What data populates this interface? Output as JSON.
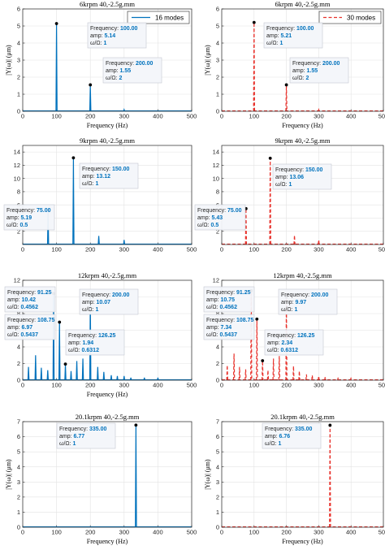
{
  "chart_data": [
    {
      "type": "line",
      "title": "6krpm 40,-2.5g.mm",
      "xlabel": "Frequency (Hz)",
      "ylabel": "|Y(ω)| (μm)",
      "xlim": [
        0,
        500
      ],
      "ylim": [
        0,
        6
      ],
      "xticks": [
        0,
        100,
        200,
        300,
        400,
        500
      ],
      "yticks": [
        0,
        1,
        2,
        3,
        4,
        5,
        6
      ],
      "grid": true,
      "legend": "top-right",
      "series": [
        {
          "name": "16 modes",
          "color": "#0072BD",
          "dash": "solid",
          "x": [
            100,
            200,
            300
          ],
          "values": [
            5.14,
            1.55,
            0.1
          ]
        }
      ],
      "datatips": [
        {
          "x": 100,
          "y": 5.14,
          "frequency": "100.00",
          "amp": "5.14",
          "ratio": "1"
        },
        {
          "x": 200,
          "y": 1.55,
          "frequency": "200.00",
          "amp": "1.55",
          "ratio": "2"
        }
      ]
    },
    {
      "type": "line",
      "title": "6krpm 40,-2.5g.mm",
      "xlabel": "Frequency (Hz)",
      "ylabel": "|Y(ω)| (μm)",
      "xlim": [
        0,
        500
      ],
      "ylim": [
        0,
        6
      ],
      "xticks": [
        0,
        100,
        200,
        300,
        400,
        500
      ],
      "yticks": [
        0,
        1,
        2,
        3,
        4,
        5,
        6
      ],
      "grid": true,
      "legend": "top-right",
      "series": [
        {
          "name": "30 modes",
          "color": "#E8312B",
          "dash": "dashed",
          "x": [
            100,
            200,
            300
          ],
          "values": [
            5.21,
            1.55,
            0.1
          ]
        }
      ],
      "datatips": [
        {
          "x": 100,
          "y": 5.21,
          "frequency": "100.00",
          "amp": "5.21",
          "ratio": "1"
        },
        {
          "x": 200,
          "y": 1.55,
          "frequency": "200.00",
          "amp": "1.55",
          "ratio": "2"
        }
      ]
    },
    {
      "type": "line",
      "title": "9krpm 40,-2.5g.mm",
      "xlabel": "",
      "ylabel": "",
      "xlim": [
        0,
        500
      ],
      "ylim": [
        0,
        15
      ],
      "xticks": [
        0,
        100,
        200,
        300,
        400,
        500
      ],
      "yticks": [
        2,
        4,
        6,
        8,
        10,
        12,
        14
      ],
      "grid": true,
      "series": [
        {
          "color": "#0072BD",
          "dash": "solid",
          "x": [
            75,
            150,
            225,
            300
          ],
          "values": [
            5.19,
            13.12,
            1.3,
            0.7
          ]
        }
      ],
      "datatips": [
        {
          "x": 75,
          "y": 5.19,
          "frequency": "75.00",
          "amp": "5.19",
          "ratio": "0.5"
        },
        {
          "x": 150,
          "y": 13.12,
          "frequency": "150.00",
          "amp": "13.12",
          "ratio": "1"
        }
      ]
    },
    {
      "type": "line",
      "title": "9krpm 40,-2.5g.mm",
      "xlabel": "",
      "ylabel": "",
      "xlim": [
        0,
        500
      ],
      "ylim": [
        0,
        15
      ],
      "xticks": [
        0,
        100,
        200,
        300,
        400,
        500
      ],
      "yticks": [
        2,
        4,
        6,
        8,
        10,
        12,
        14
      ],
      "grid": true,
      "series": [
        {
          "color": "#E8312B",
          "dash": "dashed",
          "x": [
            75,
            150,
            225,
            300
          ],
          "values": [
            5.43,
            13.06,
            1.4,
            0.7
          ]
        }
      ],
      "datatips": [
        {
          "x": 75,
          "y": 5.43,
          "frequency": "75.00",
          "amp": "5.43",
          "ratio": "0.5"
        },
        {
          "x": 150,
          "y": 13.06,
          "frequency": "150.00",
          "amp": "13.06",
          "ratio": "1"
        }
      ]
    },
    {
      "type": "line",
      "title": "12krpm 40,-2.5g.mm",
      "xlabel": "Frequency (Hz)",
      "ylabel": "",
      "xlim": [
        0,
        500
      ],
      "ylim": [
        0,
        12
      ],
      "xticks": [
        0,
        100,
        200,
        300,
        400,
        500
      ],
      "yticks": [
        0,
        2,
        4,
        6,
        8,
        10,
        12
      ],
      "grid": true,
      "series": [
        {
          "color": "#0072BD",
          "dash": "solid",
          "x": [
            17,
            38,
            55,
            74,
            91.25,
            108.75,
            126.25,
            143,
            160,
            178,
            200,
            222,
            240,
            262,
            280,
            300,
            320,
            360,
            400
          ],
          "values": [
            1.6,
            3.0,
            1.5,
            1.2,
            10.42,
            6.97,
            1.94,
            1.1,
            2.3,
            2.6,
            10.07,
            1.6,
            1.0,
            0.6,
            0.5,
            0.5,
            0.3,
            0.3,
            0.3
          ]
        }
      ],
      "datatips": [
        {
          "x": 91.25,
          "y": 10.42,
          "frequency": "91.25",
          "amp": "10.42",
          "ratio": "0.4562"
        },
        {
          "x": 200,
          "y": 10.07,
          "frequency": "200.00",
          "amp": "10.07",
          "ratio": "1"
        },
        {
          "x": 108.75,
          "y": 6.97,
          "frequency": "108.75",
          "amp": "6.97",
          "ratio": "0.5437"
        },
        {
          "x": 126.25,
          "y": 1.94,
          "frequency": "126.25",
          "amp": "1.94",
          "ratio": "0.6312"
        }
      ]
    },
    {
      "type": "line",
      "title": "12krpm 40,-2.5g.mm",
      "xlabel": "",
      "ylabel": "",
      "xlim": [
        0,
        500
      ],
      "ylim": [
        0,
        12
      ],
      "xticks": [
        0,
        100,
        200,
        300,
        400,
        500
      ],
      "yticks": [
        0,
        2,
        4,
        6,
        8,
        10,
        12
      ],
      "grid": true,
      "series": [
        {
          "color": "#E8312B",
          "dash": "dashed",
          "x": [
            17,
            38,
            55,
            74,
            91.25,
            108.75,
            126.25,
            143,
            160,
            178,
            200,
            222,
            240,
            262,
            280,
            300,
            320,
            360,
            400
          ],
          "values": [
            1.8,
            3.2,
            1.6,
            1.3,
            10.75,
            7.34,
            2.34,
            1.2,
            2.6,
            2.9,
            9.97,
            1.7,
            1.1,
            0.7,
            0.6,
            0.5,
            0.4,
            0.3,
            0.3
          ]
        }
      ],
      "datatips": [
        {
          "x": 91.25,
          "y": 10.75,
          "frequency": "91.25",
          "amp": "10.75",
          "ratio": "0.4562"
        },
        {
          "x": 200,
          "y": 9.97,
          "frequency": "200.00",
          "amp": "9.97",
          "ratio": "1"
        },
        {
          "x": 108.75,
          "y": 7.34,
          "frequency": "108.75",
          "amp": "7.34",
          "ratio": "0.5437"
        },
        {
          "x": 126.25,
          "y": 2.34,
          "frequency": "126.25",
          "amp": "2.34",
          "ratio": "0.6312"
        }
      ]
    },
    {
      "type": "line",
      "title": "20.1krpm 40,-2.5g.mm",
      "xlabel": "Frequency (Hz)",
      "ylabel": "|Y(ω)| (μm)",
      "xlim": [
        0,
        500
      ],
      "ylim": [
        0,
        7
      ],
      "xticks": [
        0,
        100,
        200,
        300,
        400,
        500
      ],
      "yticks": [
        0,
        1,
        2,
        3,
        4,
        5,
        6,
        7
      ],
      "grid": true,
      "series": [
        {
          "color": "#0072BD",
          "dash": "solid",
          "x": [
            335
          ],
          "values": [
            6.77
          ]
        }
      ],
      "datatips": [
        {
          "x": 335,
          "y": 6.77,
          "frequency": "335.00",
          "amp": "6.77",
          "ratio": "1"
        }
      ]
    },
    {
      "type": "line",
      "title": "20.1krpm 40,-2.5g.mm",
      "xlabel": "Frequency (Hz)",
      "ylabel": "|Y(ω)| (μm)",
      "xlim": [
        0,
        500
      ],
      "ylim": [
        0,
        7
      ],
      "xticks": [
        0,
        100,
        200,
        300,
        400,
        500
      ],
      "yticks": [
        0,
        1,
        2,
        3,
        4,
        5,
        6,
        7
      ],
      "grid": true,
      "series": [
        {
          "color": "#E8312B",
          "dash": "dashed",
          "x": [
            335
          ],
          "values": [
            6.76
          ]
        }
      ],
      "datatips": [
        {
          "x": 335,
          "y": 6.76,
          "frequency": "335.00",
          "amp": "6.76",
          "ratio": "1"
        }
      ]
    }
  ],
  "labels": {
    "tip_frequency": "Frequency:",
    "tip_amp": "amp:",
    "tip_ratio": "ω/Ω:"
  }
}
